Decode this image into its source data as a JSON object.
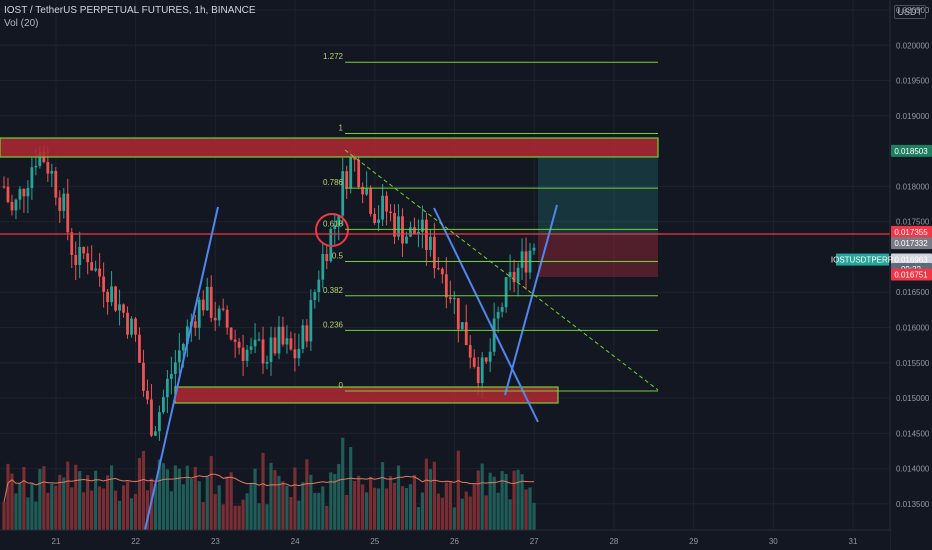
{
  "header": {
    "symbol_title": "IOST / TetherUS PERPETUAL FUTURES, 1h, BINANCE",
    "volume_label": "Vol (20)",
    "currency": "USDT"
  },
  "price_axis": {
    "ticks": [
      "0.020500",
      "0.020000",
      "0.019500",
      "0.019000",
      "0.018000",
      "0.017500",
      "0.016500",
      "0.016000",
      "0.015500",
      "0.015000",
      "0.014500",
      "0.014000",
      "0.013500"
    ],
    "tick_values": [
      0.0205,
      0.02,
      0.0195,
      0.019,
      0.018,
      0.0175,
      0.0165,
      0.016,
      0.0155,
      0.015,
      0.0145,
      0.014,
      0.0135
    ]
  },
  "time_axis": {
    "labels": [
      "21",
      "22",
      "23",
      "24",
      "25",
      "26",
      "27",
      "28",
      "29",
      "30",
      "31"
    ]
  },
  "price_tags": [
    {
      "label": "0.018503",
      "value": 0.018503,
      "color": "#1e7f5f",
      "text_color": "#ffffff"
    },
    {
      "label": "0.017355",
      "value": 0.017355,
      "color": "#f23645",
      "text_color": "#ffffff"
    },
    {
      "label": "0.017332",
      "value": 0.017195,
      "color": "#787b86",
      "text_color": "#ffffff"
    },
    {
      "label": "0.016963",
      "value": 0.016963,
      "color": "#d1d4dc",
      "text_color": "#131722"
    },
    {
      "label": "09:32",
      "value": 0.01683,
      "color": "#5d6b7a",
      "text_color": "#ffffff"
    },
    {
      "label": "0.016751",
      "value": 0.016751,
      "color": "#f23645",
      "text_color": "#ffffff"
    }
  ],
  "symbol_tag": {
    "label": "IOSTUSDTPERP",
    "color": "#26a69a"
  },
  "fib_levels": [
    {
      "label": "1.272",
      "value": 0.01976
    },
    {
      "label": "1",
      "value": 0.01875
    },
    {
      "label": "0.786",
      "value": 0.017975
    },
    {
      "label": "0.618",
      "value": 0.01739
    },
    {
      "label": "0.5",
      "value": 0.016935
    },
    {
      "label": "0.382",
      "value": 0.01645
    },
    {
      "label": "0.236",
      "value": 0.01596
    },
    {
      "label": "0",
      "value": 0.0151
    }
  ],
  "chart_data": {
    "type": "candlestick",
    "title": "IOST / TetherUS PERPETUAL FUTURES, 1h, BINANCE",
    "xlabel": "",
    "ylabel": "",
    "ylim": [
      0.0131,
      0.0206
    ],
    "x_labels": [
      "21",
      "22",
      "23",
      "24",
      "25",
      "26",
      "27",
      "28",
      "29",
      "30",
      "31"
    ],
    "closes": [
      0.018,
      0.0176,
      0.0179,
      0.0182,
      0.0185,
      0.0184,
      0.0181,
      0.0178,
      0.0172,
      0.0169,
      0.0171,
      0.0168,
      0.0167,
      0.0165,
      0.0163,
      0.0161,
      0.0158,
      0.015,
      0.0146,
      0.0149,
      0.0153,
      0.0156,
      0.0159,
      0.0162,
      0.0164,
      0.0163,
      0.0161,
      0.016,
      0.0158,
      0.0157,
      0.0156,
      0.0157,
      0.0156,
      0.0158,
      0.0157,
      0.0156,
      0.0158,
      0.0162,
      0.0168,
      0.0172,
      0.0175,
      0.0181,
      0.0184,
      0.0182,
      0.0179,
      0.0176,
      0.0177,
      0.0175,
      0.0174,
      0.0173,
      0.0174,
      0.0172,
      0.017,
      0.0168,
      0.0165,
      0.0161,
      0.0158,
      0.0155,
      0.0153,
      0.0158,
      0.0163,
      0.0166,
      0.0168,
      0.017,
      0.0172
    ],
    "volume_ma_label": "Vol (20)"
  }
}
